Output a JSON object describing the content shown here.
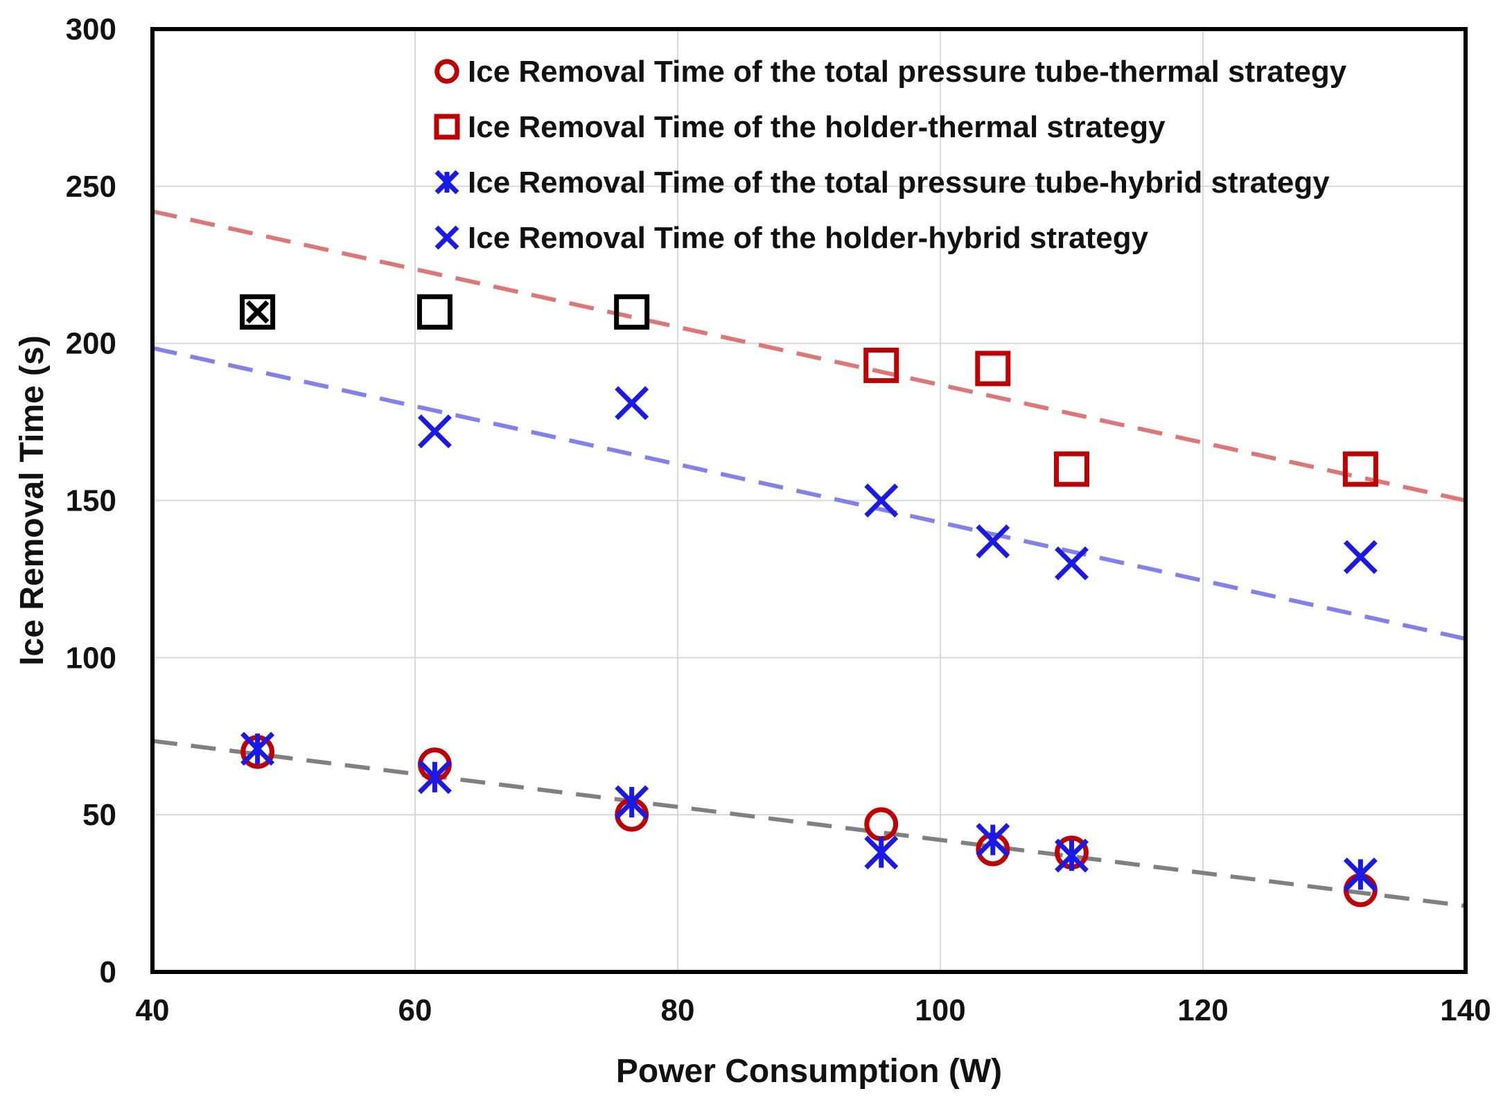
{
  "chart_data": {
    "type": "scatter",
    "title": "",
    "xlabel": "Power Consumption (W)",
    "ylabel": "Ice Removal Time (s)",
    "xlim": [
      40,
      140
    ],
    "ylim": [
      0,
      300
    ],
    "xticks": [
      "40",
      "60",
      "80",
      "100",
      "120",
      "140"
    ],
    "yticks": [
      "0",
      "50",
      "100",
      "150",
      "200",
      "250",
      "300"
    ],
    "grid": true,
    "legend_position": "top-right",
    "series": [
      {
        "name": "Ice Removal Time of the total pressure tube-thermal strategy",
        "marker": "circle",
        "color": "#c00000",
        "x": [
          48,
          61.5,
          76.5,
          95.5,
          104,
          110,
          132
        ],
        "y": [
          70,
          66,
          50,
          47,
          39,
          38,
          26
        ]
      },
      {
        "name": "Ice Removal Time of the holder-thermal strategy",
        "marker": "square",
        "color": "#c00000",
        "x": [
          95.5,
          104,
          110,
          132
        ],
        "y": [
          193,
          192,
          160,
          160
        ]
      },
      {
        "name": "Ice Removal Time of the total pressure tube-hybrid strategy",
        "marker": "asterisk",
        "color": "#1a1ae6",
        "x": [
          48,
          61.5,
          76.5,
          95.5,
          104,
          110,
          132
        ],
        "y": [
          71,
          62,
          54,
          38,
          42,
          37,
          31
        ]
      },
      {
        "name": "Ice Removal Time of the holder-hybrid strategy",
        "marker": "x",
        "color": "#1a1ae6",
        "x": [
          61.5,
          76.5,
          95.5,
          104,
          110,
          132
        ],
        "y": [
          172,
          181,
          150,
          137,
          130,
          132
        ]
      }
    ],
    "reference_markers": [
      {
        "marker": "square-x",
        "color": "#000000",
        "x": 48,
        "y": 210
      },
      {
        "marker": "square",
        "color": "#000000",
        "x": 61.5,
        "y": 210
      },
      {
        "marker": "square",
        "color": "#000000",
        "x": 76.5,
        "y": 210
      }
    ],
    "trendlines": [
      {
        "color": "#e07575",
        "x": [
          40,
          140
        ],
        "y": [
          242,
          150
        ]
      },
      {
        "color": "#8080f0",
        "x": [
          40,
          140
        ],
        "y": [
          198.5,
          106
        ]
      },
      {
        "color": "#808080",
        "x": [
          40,
          140
        ],
        "y": [
          73.5,
          21
        ]
      }
    ]
  }
}
